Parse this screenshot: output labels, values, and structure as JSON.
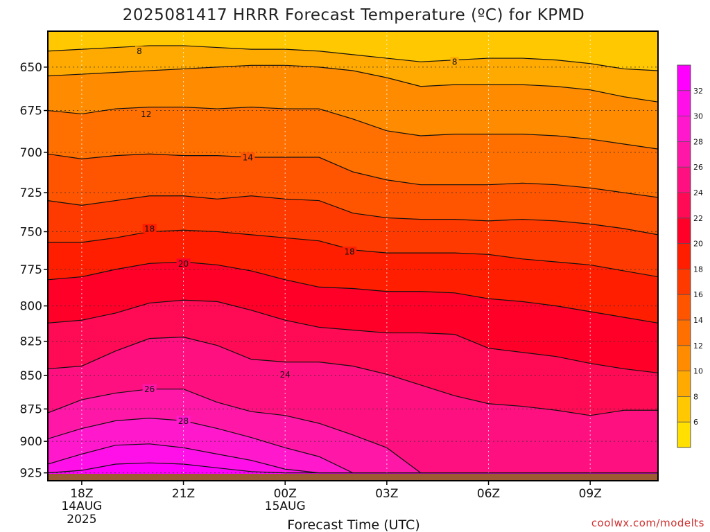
{
  "chart_data": {
    "type": "heatmap",
    "title": "2025081417 HRRR Forecast Temperature (ºC) for KPMD",
    "xlabel": "Forecast Time (UTC)",
    "ylabel": "",
    "credit": "coolwx.com/modelts",
    "y_ticks": [
      "650",
      "675",
      "700",
      "725",
      "750",
      "775",
      "800",
      "825",
      "850",
      "875",
      "900",
      "925"
    ],
    "y_tick_values": [
      650,
      675,
      700,
      725,
      750,
      775,
      800,
      825,
      850,
      875,
      900,
      925
    ],
    "ylim": [
      630,
      928
    ],
    "y_scale": "log",
    "y_reversed": true,
    "x_ticks": [
      {
        "label": "18Z",
        "sub1": "14AUG",
        "sub2": "2025",
        "hour": 0
      },
      {
        "label": "21Z",
        "sub1": "",
        "sub2": "",
        "hour": 3
      },
      {
        "label": "00Z",
        "sub1": "15AUG",
        "sub2": "",
        "hour": 6
      },
      {
        "label": "03Z",
        "sub1": "",
        "sub2": "",
        "hour": 9
      },
      {
        "label": "06Z",
        "sub1": "",
        "sub2": "",
        "hour": 12
      },
      {
        "label": "09Z",
        "sub1": "",
        "sub2": "",
        "hour": 15
      }
    ],
    "xlim": [
      -1,
      17
    ],
    "surface_pressure": 925,
    "colorbar": {
      "ticks": [
        "6",
        "8",
        "10",
        "12",
        "14",
        "16",
        "18",
        "20",
        "22",
        "24",
        "26",
        "28",
        "30",
        "32"
      ],
      "levels": [
        4,
        6,
        8,
        10,
        12,
        14,
        16,
        18,
        20,
        22,
        24,
        26,
        28,
        30,
        32,
        34
      ],
      "colors": [
        "#ffe000",
        "#ffc800",
        "#ffaa00",
        "#ff8c00",
        "#ff7000",
        "#ff5500",
        "#ff3a00",
        "#ff1e00",
        "#ff0028",
        "#ff0a55",
        "#ff1080",
        "#ff18a8",
        "#ff18cc",
        "#ff10e8",
        "#ff00ff"
      ]
    },
    "x_hours": [
      -1,
      0,
      1,
      2,
      3,
      4,
      5,
      6,
      7,
      8,
      9,
      10,
      11,
      12,
      13,
      14,
      15,
      16,
      17
    ],
    "contours": [
      {
        "level": 8,
        "p": [
          641,
          640,
          639,
          638,
          638,
          639,
          640,
          640,
          641,
          643,
          645,
          647,
          646,
          645,
          645,
          646,
          648,
          651,
          652
        ]
      },
      {
        "level": 10,
        "p": [
          655,
          654,
          653,
          652,
          651,
          650,
          649,
          649,
          650,
          652,
          656,
          661,
          660,
          660,
          660,
          661,
          663,
          667,
          670
        ]
      },
      {
        "level": 12,
        "p": [
          675,
          677,
          674,
          673,
          673,
          674,
          673,
          674,
          674,
          680,
          687,
          690,
          689,
          689,
          689,
          690,
          692,
          695,
          698
        ]
      },
      {
        "level": 14,
        "p": [
          701,
          704,
          702,
          701,
          702,
          702,
          703,
          703,
          703,
          712,
          717,
          720,
          720,
          720,
          719,
          720,
          722,
          725,
          728
        ]
      },
      {
        "level": 16,
        "p": [
          730,
          733,
          730,
          727,
          727,
          729,
          727,
          729,
          730,
          738,
          741,
          742,
          742,
          743,
          742,
          743,
          745,
          748,
          752
        ]
      },
      {
        "level": 18,
        "p": [
          757,
          757,
          754,
          750,
          749,
          750,
          752,
          754,
          756,
          762,
          764,
          764,
          764,
          765,
          768,
          770,
          772,
          776,
          780
        ]
      },
      {
        "level": 20,
        "p": [
          782,
          780,
          775,
          771,
          770,
          772,
          776,
          782,
          787,
          788,
          790,
          790,
          791,
          795,
          797,
          800,
          804,
          808,
          812
        ]
      },
      {
        "level": 22,
        "p": [
          812,
          810,
          805,
          798,
          796,
          797,
          803,
          810,
          815,
          817,
          819,
          819,
          820,
          830,
          833,
          836,
          841,
          845,
          848
        ]
      },
      {
        "level": 24,
        "p": [
          845,
          843,
          832,
          823,
          822,
          828,
          838,
          840,
          840,
          843,
          849,
          857,
          865,
          871,
          873,
          876,
          880,
          876,
          876
        ]
      },
      {
        "level": 26,
        "p": [
          878,
          868,
          863,
          860,
          860,
          870,
          877,
          880,
          886,
          895,
          905,
          925,
          925,
          925,
          925,
          925,
          925,
          925,
          925
        ]
      },
      {
        "level": 28,
        "p": [
          898,
          890,
          884,
          882,
          884,
          890,
          897,
          905,
          912,
          925,
          925,
          925,
          925,
          925,
          925,
          925,
          925,
          925,
          925
        ]
      },
      {
        "level": 30,
        "p": [
          918,
          910,
          903,
          902,
          905,
          910,
          915,
          922,
          925,
          925,
          925,
          925,
          925,
          925,
          925,
          925,
          925,
          925,
          925
        ]
      },
      {
        "level": 32,
        "p": [
          925,
          923,
          918,
          917,
          918,
          921,
          924,
          925,
          925,
          925,
          925,
          925,
          925,
          925,
          925,
          925,
          925,
          925,
          925
        ]
      }
    ],
    "contour_labels": [
      {
        "text": "8",
        "hour": 1.7,
        "pressure": 641
      },
      {
        "text": "8",
        "hour": 11.0,
        "pressure": 647
      },
      {
        "text": "12",
        "hour": 1.9,
        "pressure": 677
      },
      {
        "text": "14",
        "hour": 4.9,
        "pressure": 703
      },
      {
        "text": "18",
        "hour": 2.0,
        "pressure": 748
      },
      {
        "text": "18",
        "hour": 7.9,
        "pressure": 763
      },
      {
        "text": "20",
        "hour": 3.0,
        "pressure": 771
      },
      {
        "text": "24",
        "hour": 6.0,
        "pressure": 849
      },
      {
        "text": "26",
        "hour": 2.0,
        "pressure": 860
      },
      {
        "text": "28",
        "hour": 3.0,
        "pressure": 884
      }
    ]
  }
}
